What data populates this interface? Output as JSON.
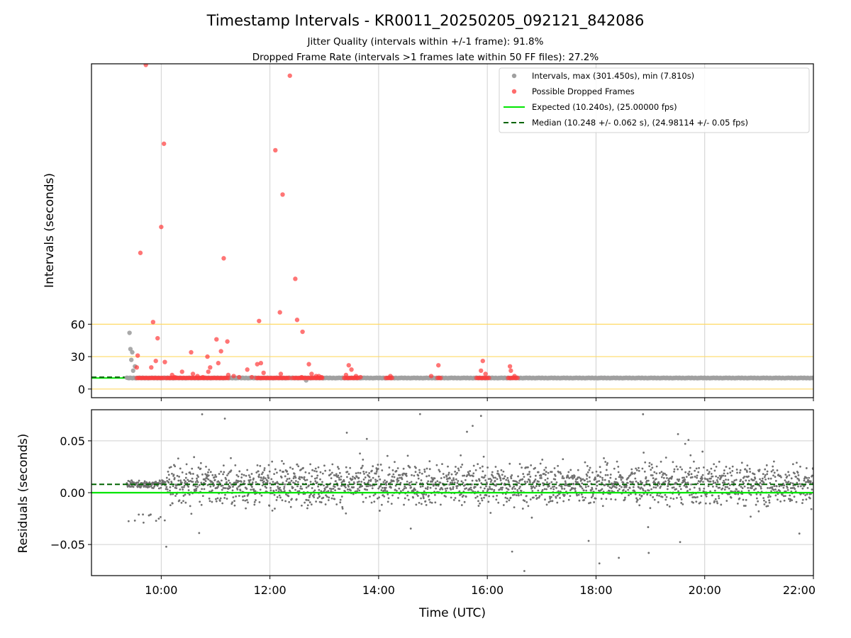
{
  "figure": {
    "title": "Timestamp Intervals - KR0011_20250205_092121_842086",
    "subtitle_line1": "Jitter Quality (intervals within +/-1 frame): 91.8%",
    "subtitle_line2": "Dropped Frame Rate (intervals >1 frames late within 50 FF files): 27.2%"
  },
  "colors": {
    "intervals": "#a0a0a0",
    "dropped": "#ff3b3b",
    "expected": "#00e600",
    "median": "#006400",
    "threshold": "#ffd966",
    "grid": "#d0d0d0",
    "residuals": "#707070"
  },
  "chart_data": [
    {
      "type": "scatter",
      "panel": "intervals",
      "ylabel": "Intervals (seconds)",
      "xlim": [
        "08:43",
        "22:00"
      ],
      "ylim": [
        -8,
        301
      ],
      "yticks": [
        {
          "value": 0,
          "label": "0"
        },
        {
          "value": 30,
          "label": "30"
        },
        {
          "value": 60,
          "label": "60"
        }
      ],
      "grid": "vertical",
      "threshold_lines": [
        0,
        30,
        60
      ],
      "legend_position": "top-right",
      "legend": [
        {
          "key": "intervals",
          "label": "Intervals, max (301.450s), min (7.810s)",
          "marker": "dot"
        },
        {
          "key": "dropped",
          "label": "Possible Dropped Frames",
          "marker": "dot"
        },
        {
          "key": "expected",
          "label": "Expected (10.240s), (25.00000 fps)",
          "marker": "line"
        },
        {
          "key": "median",
          "label": "Median (10.248 +/- 0.062 s), (24.98114 +/- 0.05 fps)",
          "marker": "dashed"
        }
      ],
      "expected_value": 10.24,
      "median_value": 10.248,
      "baseline_intervals": {
        "start": "09:22",
        "end": "22:00",
        "value": 10.24
      },
      "normal_intervals": [
        {
          "time": "09:25",
          "value": 52
        },
        {
          "time": "09:26",
          "value": 37
        },
        {
          "time": "09:27",
          "value": 27
        },
        {
          "time": "09:28",
          "value": 34
        },
        {
          "time": "09:29",
          "value": 17
        },
        {
          "time": "09:31",
          "value": 21
        },
        {
          "time": "12:40",
          "value": 8
        }
      ],
      "dropped_frames": [
        {
          "time": "09:43",
          "value": 300
        },
        {
          "time": "12:22",
          "value": 290
        },
        {
          "time": "10:03",
          "value": 227
        },
        {
          "time": "12:06",
          "value": 221
        },
        {
          "time": "12:14",
          "value": 180
        },
        {
          "time": "10:00",
          "value": 150
        },
        {
          "time": "09:37",
          "value": 126
        },
        {
          "time": "11:09",
          "value": 121
        },
        {
          "time": "12:28",
          "value": 102
        },
        {
          "time": "12:11",
          "value": 71
        },
        {
          "time": "12:30",
          "value": 64
        },
        {
          "time": "11:48",
          "value": 63
        },
        {
          "time": "09:51",
          "value": 62
        },
        {
          "time": "12:36",
          "value": 53
        },
        {
          "time": "09:56",
          "value": 47
        },
        {
          "time": "11:01",
          "value": 46
        },
        {
          "time": "11:13",
          "value": 44
        },
        {
          "time": "11:06",
          "value": 35
        },
        {
          "time": "10:33",
          "value": 34
        },
        {
          "time": "09:34",
          "value": 31
        },
        {
          "time": "10:51",
          "value": 30
        },
        {
          "time": "09:54",
          "value": 26
        },
        {
          "time": "10:04",
          "value": 25
        },
        {
          "time": "15:55",
          "value": 26
        },
        {
          "time": "11:03",
          "value": 24
        },
        {
          "time": "11:50",
          "value": 24
        },
        {
          "time": "11:46",
          "value": 23
        },
        {
          "time": "12:43",
          "value": 23
        },
        {
          "time": "13:27",
          "value": 22
        },
        {
          "time": "15:06",
          "value": 22
        },
        {
          "time": "16:25",
          "value": 21
        },
        {
          "time": "09:49",
          "value": 20
        },
        {
          "time": "09:33",
          "value": 20
        },
        {
          "time": "10:54",
          "value": 20
        },
        {
          "time": "11:35",
          "value": 18
        },
        {
          "time": "13:30",
          "value": 18
        },
        {
          "time": "16:26",
          "value": 17
        },
        {
          "time": "15:53",
          "value": 17
        },
        {
          "time": "10:23",
          "value": 16
        },
        {
          "time": "10:52",
          "value": 16
        },
        {
          "time": "11:53",
          "value": 15
        },
        {
          "time": "12:12",
          "value": 14
        },
        {
          "time": "12:46",
          "value": 14
        },
        {
          "time": "15:58",
          "value": 14
        },
        {
          "time": "13:24",
          "value": 13
        },
        {
          "time": "10:12",
          "value": 13
        },
        {
          "time": "10:35",
          "value": 14
        },
        {
          "time": "11:14",
          "value": 13
        },
        {
          "time": "12:51",
          "value": 12
        },
        {
          "time": "14:58",
          "value": 12
        },
        {
          "time": "14:13",
          "value": 12
        },
        {
          "time": "10:40",
          "value": 12
        },
        {
          "time": "11:20",
          "value": 12
        },
        {
          "time": "12:54",
          "value": 12
        },
        {
          "time": "13:35",
          "value": 12
        },
        {
          "time": "16:30",
          "value": 12
        },
        {
          "time": "10:46",
          "value": 11
        },
        {
          "time": "11:26",
          "value": 11
        },
        {
          "time": "12:57",
          "value": 11
        },
        {
          "time": "13:40",
          "value": 11
        },
        {
          "time": "10:15",
          "value": 11
        },
        {
          "time": "12:35",
          "value": 11
        },
        {
          "time": "11:40",
          "value": 11
        }
      ],
      "dropped_clusters": [
        {
          "start": "09:33",
          "end": "10:03",
          "value": 10.24
        },
        {
          "start": "10:05",
          "end": "11:15",
          "value": 10.24
        },
        {
          "start": "11:45",
          "end": "12:22",
          "value": 10.24
        },
        {
          "start": "12:25",
          "end": "12:58",
          "value": 10.24
        },
        {
          "start": "13:22",
          "end": "13:38",
          "value": 10.24
        },
        {
          "start": "14:08",
          "end": "14:16",
          "value": 10.24
        },
        {
          "start": "15:05",
          "end": "15:10",
          "value": 10.24
        },
        {
          "start": "15:48",
          "end": "16:03",
          "value": 10.24
        },
        {
          "start": "16:23",
          "end": "16:35",
          "value": 10.24
        }
      ]
    },
    {
      "type": "scatter",
      "panel": "residuals",
      "ylabel": "Residuals (seconds)",
      "xlabel": "Time (UTC)",
      "xlim": [
        "08:43",
        "22:00"
      ],
      "ylim": [
        -0.08,
        0.08
      ],
      "yticks": [
        {
          "value": 0.05,
          "label": "0.05"
        },
        {
          "value": 0.0,
          "label": "0.00"
        },
        {
          "value": -0.05,
          "label": "−0.05"
        }
      ],
      "xticks": [
        "10:00",
        "12:00",
        "14:00",
        "16:00",
        "18:00",
        "20:00",
        "22:00"
      ],
      "grid": "both",
      "expected_residual": 0.0,
      "median_residual": 0.008,
      "residual_pattern": {
        "start": "09:22",
        "end": "22:00",
        "early_segment_end": "10:05",
        "early_center": 0.008,
        "center": 0.008,
        "spread": 0.018,
        "outlier_range": [
          -0.08,
          0.08
        ]
      }
    }
  ]
}
